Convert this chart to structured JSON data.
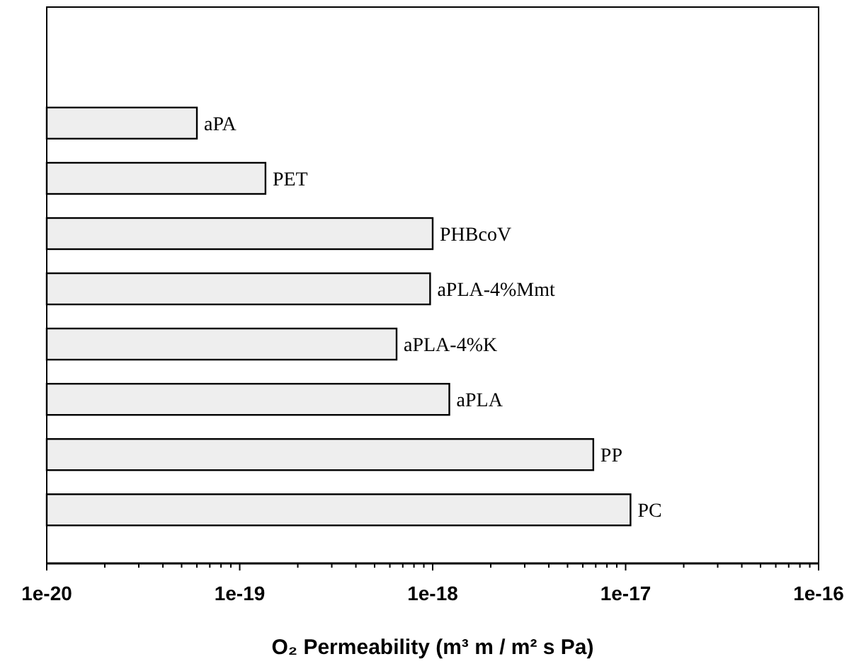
{
  "chart_data": {
    "type": "bar",
    "orientation": "horizontal",
    "log": "x",
    "xlabel": "O₂ Permeability (m³ m / m² s Pa)",
    "categories": [
      "aPA",
      "PET",
      "PHBcoV",
      "aPLA-4%Mmt",
      "aPLA-4%K",
      "aPLA",
      "PP",
      "PC"
    ],
    "values": [
      6e-20,
      1.36e-19,
      1e-18,
      9.7e-19,
      6.5e-19,
      1.22e-18,
      6.8e-18,
      1.06e-17
    ],
    "color": "#eeeeee",
    "xlim": [
      1e-20,
      1e-16
    ],
    "xticks": [
      {
        "value": 1e-20,
        "label": "1e-20"
      },
      {
        "value": 1e-19,
        "label": "1e-19"
      },
      {
        "value": 1e-18,
        "label": "1e-18"
      },
      {
        "value": 1e-17,
        "label": "1e-17"
      },
      {
        "value": 1e-16,
        "label": "1e-16"
      },
      {
        "value": 2e-20,
        "label": null
      },
      {
        "value": 3e-20,
        "label": null
      },
      {
        "value": 4e-20,
        "label": null
      },
      {
        "value": 5e-20,
        "label": null
      },
      {
        "value": 6e-20,
        "label": null
      },
      {
        "value": 7e-20,
        "label": null
      },
      {
        "value": 8e-20,
        "label": null
      },
      {
        "value": 9e-20,
        "label": null
      },
      {
        "value": 2e-19,
        "label": null
      },
      {
        "value": 3e-19,
        "label": null
      },
      {
        "value": 4e-19,
        "label": null
      },
      {
        "value": 5e-19,
        "label": null
      },
      {
        "value": 6e-19,
        "label": null
      },
      {
        "value": 7e-19,
        "label": null
      },
      {
        "value": 8e-19,
        "label": null
      },
      {
        "value": 9e-19,
        "label": null
      },
      {
        "value": 2e-18,
        "label": null
      },
      {
        "value": 3e-18,
        "label": null
      },
      {
        "value": 4e-18,
        "label": null
      },
      {
        "value": 5e-18,
        "label": null
      },
      {
        "value": 6e-18,
        "label": null
      },
      {
        "value": 7e-18,
        "label": null
      },
      {
        "value": 8e-18,
        "label": null
      },
      {
        "value": 9e-18,
        "label": null
      },
      {
        "value": 2e-17,
        "label": null
      },
      {
        "value": 3e-17,
        "label": null
      },
      {
        "value": 4e-17,
        "label": null
      },
      {
        "value": 5e-17,
        "label": null
      },
      {
        "value": 6e-17,
        "label": null
      },
      {
        "value": 7e-17,
        "label": null
      },
      {
        "value": 8e-17,
        "label": null
      },
      {
        "value": 9e-17,
        "label": null
      }
    ],
    "data_labels": false
  }
}
